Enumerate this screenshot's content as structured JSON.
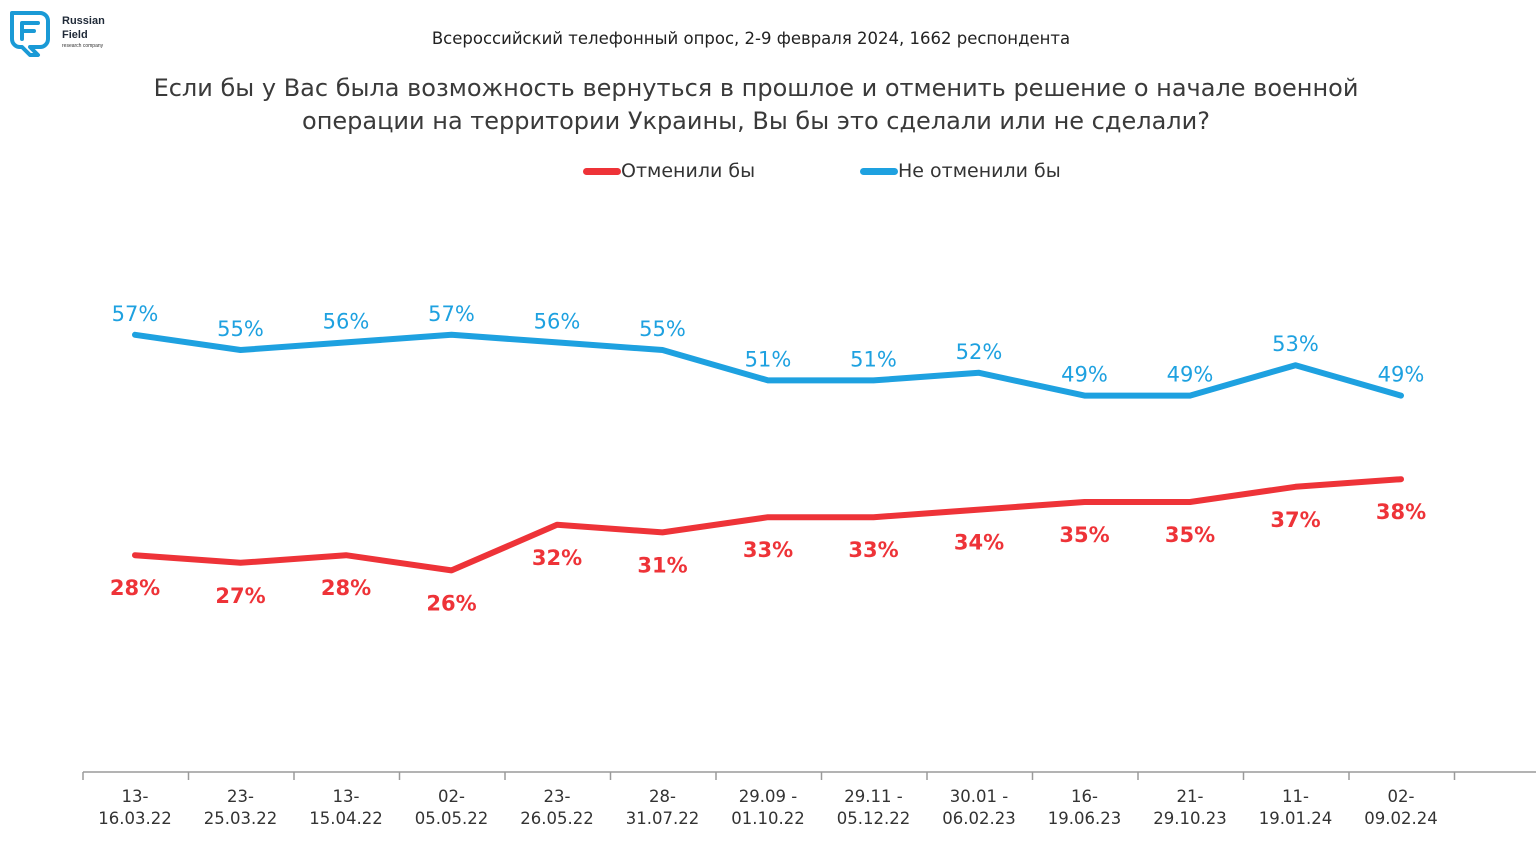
{
  "logo": {
    "name_line1": "Russian",
    "name_line2": "Field",
    "tagline": "research company",
    "color": "#1a9ad6"
  },
  "subtitle": "Всероссийский телефонный опрос, 2-9 февраля 2024, 1662 респондента",
  "chart_data": {
    "type": "line",
    "title": "Если бы у Вас была возможность вернуться в прошлое и отменить решение о начале военной операции на территории Украины, Вы бы это сделали или не сделали?",
    "categories": [
      [
        "13-",
        "16.03.22"
      ],
      [
        "23-",
        "25.03.22"
      ],
      [
        "13-",
        "15.04.22"
      ],
      [
        "02-",
        "05.05.22"
      ],
      [
        "23-",
        "26.05.22"
      ],
      [
        "28-",
        "31.07.22"
      ],
      [
        "29.09 -",
        "01.10.22"
      ],
      [
        "29.11 -",
        "05.12.22"
      ],
      [
        "30.01 -",
        "06.02.23"
      ],
      [
        "16-",
        "19.06.23"
      ],
      [
        "21-",
        "29.10.23"
      ],
      [
        "11-",
        "19.01.24"
      ],
      [
        "02-",
        "09.02.24"
      ]
    ],
    "series": [
      {
        "name": "Отменили бы",
        "color": "#ee3338",
        "values": [
          28,
          27,
          28,
          26,
          32,
          31,
          33,
          33,
          34,
          35,
          35,
          37,
          38
        ],
        "labels": [
          "28%",
          "27%",
          "28%",
          "26%",
          "32%",
          "31%",
          "33%",
          "33%",
          "34%",
          "35%",
          "35%",
          "37%",
          "38%"
        ],
        "label_position": "below"
      },
      {
        "name": "Не отменили бы",
        "color": "#1ea1e0",
        "values": [
          57,
          55,
          56,
          57,
          56,
          55,
          51,
          51,
          52,
          49,
          49,
          53,
          49
        ],
        "labels": [
          "57%",
          "55%",
          "56%",
          "57%",
          "56%",
          "55%",
          "51%",
          "51%",
          "52%",
          "49%",
          "49%",
          "53%",
          "49%"
        ],
        "label_position": "above"
      }
    ],
    "legend_position": "top",
    "grid": false
  }
}
